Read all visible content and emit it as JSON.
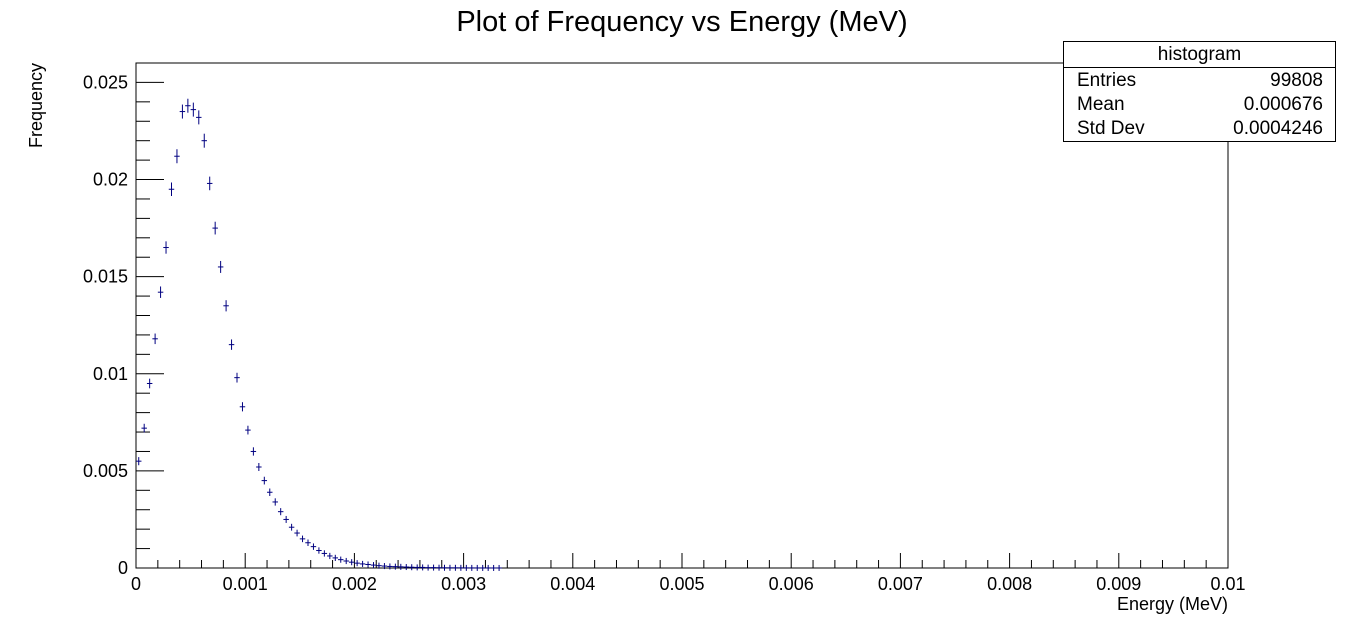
{
  "chart_data": {
    "type": "scatter",
    "title": "Plot of Frequency vs Energy (MeV)",
    "xlabel": "Energy (MeV)",
    "ylabel": "Frequency",
    "xlim": [
      0,
      0.01
    ],
    "ylim": [
      0,
      0.026
    ],
    "x_ticks": [
      "0",
      "0.001",
      "0.002",
      "0.003",
      "0.004",
      "0.005",
      "0.006",
      "0.007",
      "0.008",
      "0.009",
      "0.01"
    ],
    "y_ticks": [
      "0",
      "0.005",
      "0.01",
      "0.015",
      "0.02",
      "0.025"
    ],
    "grid": false,
    "marker_color": "#000080",
    "series": [
      {
        "x": [
          2.5e-05,
          7.5e-05,
          0.000125,
          0.000175,
          0.000225,
          0.000275,
          0.000325,
          0.000375,
          0.000425,
          0.000475,
          0.000525,
          0.000575,
          0.000625,
          0.000675,
          0.000725,
          0.000775,
          0.000825,
          0.000875,
          0.000925,
          0.000975,
          0.001025,
          0.001075,
          0.001125,
          0.001175,
          0.001225,
          0.001275,
          0.001325,
          0.001375,
          0.001425,
          0.001475,
          0.001525,
          0.001575,
          0.001625,
          0.001675,
          0.001725,
          0.001775,
          0.001825,
          0.001875,
          0.001925,
          0.001975,
          0.002025,
          0.002075,
          0.002125,
          0.002175,
          0.002225,
          0.002275,
          0.002325,
          0.002375,
          0.002425,
          0.002475,
          0.002525,
          0.002575,
          0.002625,
          0.002675,
          0.002725,
          0.002775,
          0.002825,
          0.002875,
          0.002925,
          0.002975,
          0.003025,
          0.003075,
          0.003125,
          0.003175,
          0.003225,
          0.003275,
          0.003325
        ],
        "y": [
          0.0055,
          0.0072,
          0.0095,
          0.0118,
          0.0142,
          0.0165,
          0.0195,
          0.0212,
          0.0235,
          0.0238,
          0.0236,
          0.0232,
          0.022,
          0.0198,
          0.0175,
          0.0155,
          0.0135,
          0.0115,
          0.0098,
          0.0083,
          0.0071,
          0.006,
          0.0052,
          0.0045,
          0.0039,
          0.0034,
          0.0029,
          0.0025,
          0.0021,
          0.0018,
          0.0015,
          0.0013,
          0.0011,
          0.0009,
          0.00075,
          0.00062,
          0.00052,
          0.00043,
          0.00036,
          0.0003,
          0.00025,
          0.00021,
          0.00018,
          0.00015,
          0.00012,
          0.0001,
          8e-05,
          7e-05,
          6e-05,
          5e-05,
          4e-05,
          3e-05,
          3e-05,
          2e-05,
          2e-05,
          1.5e-05,
          1.2e-05,
          1e-05,
          1e-05,
          8e-06,
          6e-06,
          5e-06,
          4e-06,
          3e-06,
          3e-06,
          2e-06,
          2e-06
        ]
      }
    ]
  },
  "stats": {
    "title": "histogram",
    "rows": [
      {
        "label": "Entries",
        "value": "99808"
      },
      {
        "label": "Mean",
        "value": "0.000676"
      },
      {
        "label": "Std Dev",
        "value": "0.0004246"
      }
    ]
  }
}
